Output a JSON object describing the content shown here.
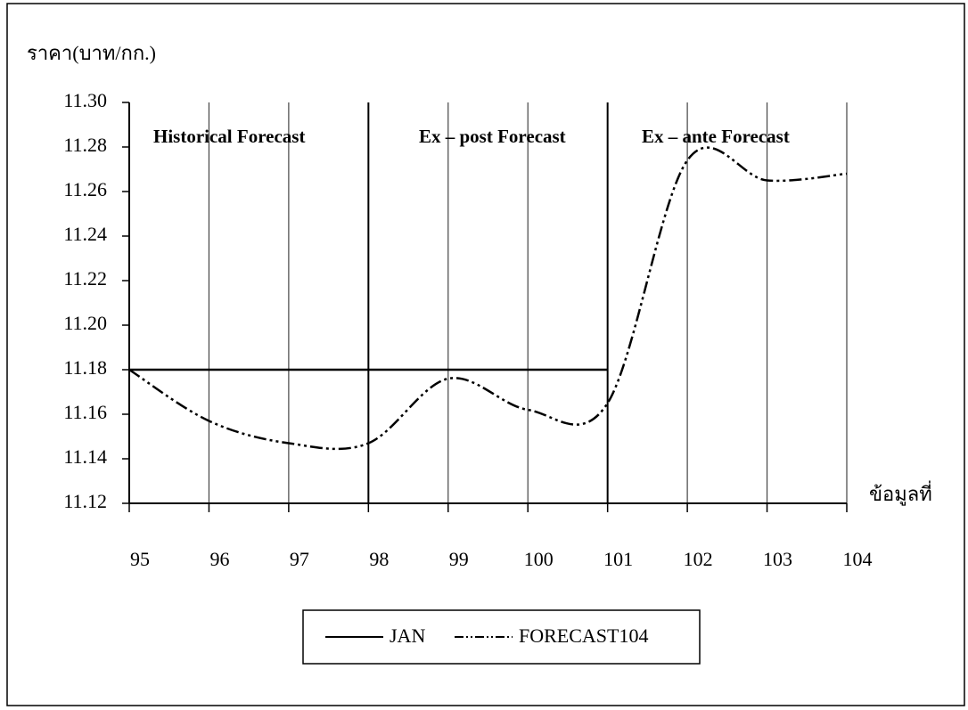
{
  "chart_data": {
    "type": "line",
    "y_axis_title": "ราคา(บาท/กก.)",
    "x_axis_title": "ข้อมูลที่",
    "annotations": [
      "Historical  Forecast",
      "Ex – post  Forecast",
      "Ex – ante  Forecast"
    ],
    "x": [
      95,
      96,
      97,
      98,
      99,
      100,
      101,
      102,
      103,
      104
    ],
    "series": [
      {
        "name": "JAN",
        "color": "#000000",
        "values": [
          11.18,
          11.18,
          11.18,
          11.18,
          11.18,
          11.18,
          11.18,
          null,
          null,
          null
        ]
      },
      {
        "name": "FORECAST104",
        "color": "#000000",
        "values": [
          11.18,
          11.157,
          11.147,
          11.147,
          11.176,
          11.162,
          11.165,
          11.274,
          11.265,
          11.268
        ]
      }
    ],
    "xlim": [
      95,
      104
    ],
    "xticks": [
      95,
      96,
      97,
      98,
      99,
      100,
      101,
      102,
      103,
      104
    ],
    "ylim": [
      11.12,
      11.3
    ],
    "yticks": [
      11.12,
      11.14,
      11.16,
      11.18,
      {
        "value": 11.2,
        "label": "11.20"
      },
      11.22,
      11.24,
      11.26,
      11.28,
      {
        "value": 11.3,
        "label": "11.30"
      }
    ],
    "section_breaks": [
      98,
      101
    ],
    "grid": true
  }
}
